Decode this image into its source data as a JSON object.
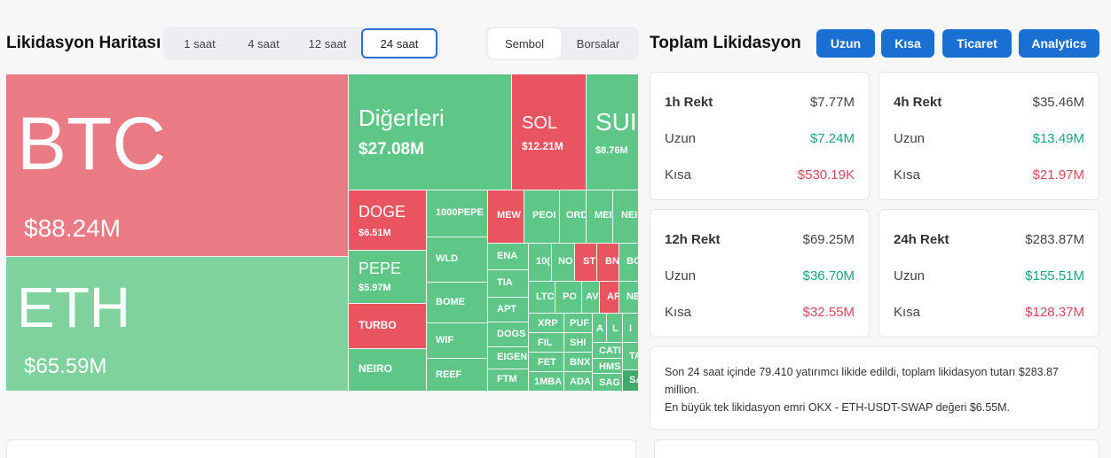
{
  "map": {
    "title": "Likidasyon Haritası",
    "timeframes": [
      "1 saat",
      "4 saat",
      "12 saat",
      "24 saat"
    ],
    "active_timeframe": "24 saat",
    "view_tabs": [
      "Sembol",
      "Borsalar"
    ],
    "cells": {
      "btc": {
        "sym": "BTC",
        "val": "$88.24M"
      },
      "eth": {
        "sym": "ETH",
        "val": "$65.59M"
      },
      "others": {
        "sym": "Diğerleri",
        "val": "$27.08M"
      },
      "sol": {
        "sym": "SOL",
        "val": "$12.21M"
      },
      "sui": {
        "sym": "SUI",
        "val": "$8.76M"
      },
      "doge": {
        "sym": "DOGE",
        "val": "$6.51M"
      },
      "pepe": {
        "sym": "PEPE",
        "val": "$5.97M"
      },
      "turbo": {
        "sym": "TURBO"
      },
      "neiro": {
        "sym": "NEIRO"
      },
      "pepe1000": {
        "sym": "1000PEPE"
      },
      "wld": {
        "sym": "WLD"
      },
      "bome": {
        "sym": "BOME"
      },
      "wif": {
        "sym": "WIF"
      },
      "reef": {
        "sym": "REEF"
      },
      "mew": {
        "sym": "MEW"
      },
      "peo": {
        "sym": "PEOI"
      },
      "ord": {
        "sym": "ORD"
      },
      "mem": {
        "sym": "MEI"
      },
      "nei": {
        "sym": "NEI"
      },
      "ena": {
        "sym": "ENA"
      },
      "tia": {
        "sym": "TIA"
      },
      "apt": {
        "sym": "APT"
      },
      "dogs": {
        "sym": "DOGS"
      },
      "eigen": {
        "sym": "EIGEN"
      },
      "ftm": {
        "sym": "FTM"
      },
      "k10": {
        "sym": "10("
      },
      "no": {
        "sym": "NO"
      },
      "st": {
        "sym": "ST"
      },
      "bn": {
        "sym": "BN"
      },
      "bo": {
        "sym": "BO"
      },
      "ltc": {
        "sym": "LTC"
      },
      "po": {
        "sym": "PO"
      },
      "av": {
        "sym": "AV"
      },
      "ar": {
        "sym": "AR"
      },
      "ne": {
        "sym": "NE"
      },
      "xrp": {
        "sym": "XRP"
      },
      "pur": {
        "sym": "PUF"
      },
      "fil": {
        "sym": "FIL"
      },
      "shi": {
        "sym": "SHI"
      },
      "fet": {
        "sym": "FET"
      },
      "bnx": {
        "sym": "BNX"
      },
      "mba": {
        "sym": "1MBA"
      },
      "ada": {
        "sym": "ADA"
      },
      "a1": {
        "sym": "A"
      },
      "l1": {
        "sym": "L"
      },
      "i1": {
        "sym": "I"
      },
      "cat": {
        "sym": "CATI"
      },
      "hms": {
        "sym": "HMS"
      },
      "sag": {
        "sym": "SAG"
      },
      "ta": {
        "sym": "TA"
      },
      "sa": {
        "sym": "SA"
      }
    }
  },
  "totals": {
    "title": "Toplam Likidasyon",
    "buttons": [
      "Uzun",
      "Kısa",
      "Ticaret",
      "Analytics"
    ],
    "cards": [
      {
        "label": "1h Rekt",
        "total": "$7.77M",
        "long_label": "Uzun",
        "long": "$7.24M",
        "short_label": "Kısa",
        "short": "$530.19K"
      },
      {
        "label": "4h Rekt",
        "total": "$35.46M",
        "long_label": "Uzun",
        "long": "$13.49M",
        "short_label": "Kısa",
        "short": "$21.97M"
      },
      {
        "label": "12h Rekt",
        "total": "$69.25M",
        "long_label": "Uzun",
        "long": "$36.70M",
        "short_label": "Kısa",
        "short": "$32.55M"
      },
      {
        "label": "24h Rekt",
        "total": "$283.87M",
        "long_label": "Uzun",
        "long": "$155.51M",
        "short_label": "Kısa",
        "short": "$128.37M"
      }
    ],
    "info_line1": "Son 24 saat içinde 79.410 yatırımcı likide edildi, toplam likidasyon tutarı $283.87 million.",
    "info_line2": "En büyük tek likidasyon emri OKX - ETH-USDT-SWAP değeri $6.55M."
  },
  "colors": {
    "accent": "#1a6fd3",
    "long": "#19a57d",
    "short": "#e0465a"
  }
}
